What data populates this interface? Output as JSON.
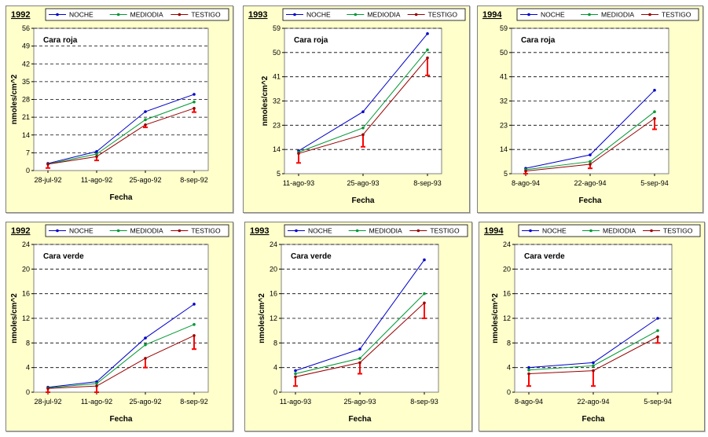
{
  "legend_labels": [
    "NOCHE",
    "MEDIODIA",
    "TESTIGO"
  ],
  "colors": {
    "noche": "#0000cc",
    "mediodia": "#009933",
    "testigo": "#990000",
    "errorbar": "#ff0000",
    "panel_bg": "#ffffcc"
  },
  "chart_data": [
    {
      "type": "line",
      "year": "1992",
      "subtitle": "Cara roja",
      "xlabel": "Fecha",
      "ylabel": "nmoles/cm^2",
      "categories": [
        "28-jul-92",
        "11-ago-92",
        "25-ago-92",
        "8-sep-92"
      ],
      "yticks": [
        "0",
        "7",
        "14",
        "21",
        "28",
        "35",
        "42",
        "49",
        "56"
      ],
      "ylim": [
        0,
        56
      ],
      "grid": true,
      "legend_position": "top",
      "series": [
        {
          "name": "NOCHE",
          "values": [
            2.8,
            7.5,
            23.2,
            30.0
          ]
        },
        {
          "name": "MEDIODIA",
          "values": [
            2.6,
            6.5,
            20.0,
            27.0
          ]
        },
        {
          "name": "TESTIGO",
          "values": [
            2.5,
            5.5,
            18.0,
            24.5
          ]
        }
      ],
      "error_low": [
        1.0,
        4.0,
        17.0,
        23.0
      ]
    },
    {
      "type": "line",
      "year": "1993",
      "subtitle": "Cara roja",
      "xlabel": "Fecha",
      "ylabel": "nmoles/cm^2",
      "categories": [
        "11-ago-93",
        "25-ago-93",
        "8-sep-93"
      ],
      "yticks": [
        "5",
        "14",
        "23",
        "32",
        "41",
        "50",
        "59"
      ],
      "ylim": [
        5,
        59
      ],
      "grid": true,
      "legend_position": "top",
      "series": [
        {
          "name": "NOCHE",
          "values": [
            13.5,
            28.0,
            57.0
          ]
        },
        {
          "name": "MEDIODIA",
          "values": [
            13.0,
            22.0,
            51.0
          ]
        },
        {
          "name": "TESTIGO",
          "values": [
            12.5,
            19.5,
            48.0
          ]
        }
      ],
      "error_low": [
        9.0,
        15.0,
        41.5
      ]
    },
    {
      "type": "line",
      "year": "1994",
      "subtitle": "Cara roja",
      "xlabel": "Fecha",
      "ylabel": "",
      "categories": [
        "8-ago-94",
        "22-ago-94",
        "5-sep-94"
      ],
      "yticks": [
        "5",
        "14",
        "23",
        "32",
        "41",
        "50",
        "59"
      ],
      "ylim": [
        5,
        59
      ],
      "grid": true,
      "legend_position": "top",
      "series": [
        {
          "name": "NOCHE",
          "values": [
            7.0,
            12.0,
            36.0
          ]
        },
        {
          "name": "MEDIODIA",
          "values": [
            6.5,
            9.5,
            28.0
          ]
        },
        {
          "name": "TESTIGO",
          "values": [
            6.0,
            8.5,
            25.5
          ]
        }
      ],
      "error_low": [
        5.0,
        7.0,
        21.5
      ]
    },
    {
      "type": "line",
      "year": "1992",
      "subtitle": "Cara verde",
      "xlabel": "Fecha",
      "ylabel": "nmoles/cm^2",
      "categories": [
        "28-jul-92",
        "11-ago-92",
        "25-ago-92",
        "8-sep-92"
      ],
      "yticks": [
        "0",
        "4",
        "8",
        "12",
        "16",
        "20",
        "24"
      ],
      "ylim": [
        0,
        24
      ],
      "grid": true,
      "legend_position": "top",
      "series": [
        {
          "name": "NOCHE",
          "values": [
            0.8,
            1.7,
            8.8,
            14.3
          ]
        },
        {
          "name": "MEDIODIA",
          "values": [
            0.7,
            1.4,
            7.7,
            11.0
          ]
        },
        {
          "name": "TESTIGO",
          "values": [
            0.6,
            1.0,
            5.5,
            9.2
          ]
        }
      ],
      "error_low": [
        0.0,
        0.0,
        4.0,
        7.0
      ]
    },
    {
      "type": "line",
      "year": "1993",
      "subtitle": "Cara verde",
      "xlabel": "Fecha",
      "ylabel": "nmoles/cm^2",
      "categories": [
        "11-ago-93",
        "25-ago-93",
        "8-sep-93"
      ],
      "yticks": [
        "0",
        "4",
        "8",
        "12",
        "16",
        "20",
        "24"
      ],
      "ylim": [
        0,
        24
      ],
      "grid": true,
      "legend_position": "top",
      "series": [
        {
          "name": "NOCHE",
          "values": [
            3.5,
            7.0,
            21.5
          ]
        },
        {
          "name": "MEDIODIA",
          "values": [
            3.0,
            5.5,
            16.0
          ]
        },
        {
          "name": "TESTIGO",
          "values": [
            2.5,
            4.8,
            14.5
          ]
        }
      ],
      "error_low": [
        1.0,
        3.0,
        12.0
      ]
    },
    {
      "type": "line",
      "year": "1994",
      "subtitle": "Cara verde",
      "xlabel": "Fecha",
      "ylabel": "nmoles/cm^2",
      "categories": [
        "8-ago-94",
        "22-ago-94",
        "5-sep-94"
      ],
      "yticks": [
        "0",
        "4",
        "8",
        "12",
        "16",
        "20",
        "24"
      ],
      "ylim": [
        0,
        24
      ],
      "grid": true,
      "legend_position": "top",
      "series": [
        {
          "name": "NOCHE",
          "values": [
            4.0,
            4.8,
            12.0
          ]
        },
        {
          "name": "MEDIODIA",
          "values": [
            3.6,
            4.3,
            10.0
          ]
        },
        {
          "name": "TESTIGO",
          "values": [
            3.0,
            3.5,
            9.0
          ]
        }
      ],
      "error_low": [
        1.0,
        1.0,
        8.0
      ]
    }
  ]
}
